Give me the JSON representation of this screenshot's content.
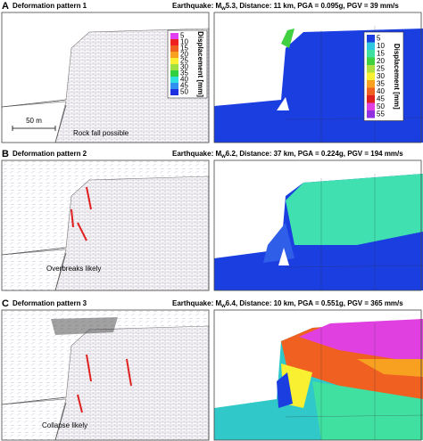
{
  "panels": [
    {
      "label": "A",
      "title": "Deformation pattern 1",
      "eq_prefix": "Earthquake: M",
      "eq_sub": "w",
      "eq_rest": "5.3, Distance: 11 km, PGA = 0.095g, PGV = 39 mm/s",
      "note": "Rock fall possible",
      "scale": "50 m"
    },
    {
      "label": "B",
      "title": "Deformation pattern 2",
      "eq_prefix": "Earthquake: M",
      "eq_sub": "w",
      "eq_rest": "6.2, Distance: 37 km, PGA = 0.224g, PGV = 194 mm/s",
      "note": "Overbreaks likely"
    },
    {
      "label": "C",
      "title": "Deformation pattern 3",
      "eq_prefix": "Earthquake: M",
      "eq_sub": "w",
      "eq_rest": "6.4, Distance: 10 km, PGA = 0.551g, PGV = 365 mm/s",
      "note": "Collapse likely"
    }
  ],
  "legend_left": {
    "title": "Displacement [mm]",
    "levels": [
      5,
      10,
      15,
      20,
      25,
      30,
      35,
      40,
      45,
      50
    ],
    "colors": [
      "#e040f0",
      "#f02020",
      "#f06020",
      "#f8a020",
      "#f8f030",
      "#a0e040",
      "#30d040",
      "#30e0e0",
      "#3090f0",
      "#2030e0"
    ]
  },
  "legend_right": {
    "title": "Displacement [mm]",
    "levels": [
      5,
      10,
      15,
      20,
      25,
      30,
      35,
      40,
      45,
      50,
      55
    ],
    "colors": [
      "#1a3ee0",
      "#30c8e0",
      "#40e0a0",
      "#40d040",
      "#b0e040",
      "#f8f030",
      "#f8a020",
      "#f06020",
      "#e02020",
      "#e040e0",
      "#9030e0"
    ]
  }
}
